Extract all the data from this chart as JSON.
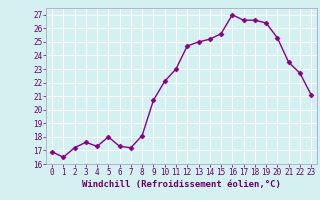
{
  "x": [
    0,
    1,
    2,
    3,
    4,
    5,
    6,
    7,
    8,
    9,
    10,
    11,
    12,
    13,
    14,
    15,
    16,
    17,
    18,
    19,
    20,
    21,
    22,
    23
  ],
  "y": [
    16.9,
    16.5,
    17.2,
    17.6,
    17.3,
    18.0,
    17.3,
    17.2,
    18.1,
    20.7,
    22.1,
    23.0,
    24.7,
    25.0,
    25.2,
    25.6,
    27.0,
    26.6,
    26.6,
    26.4,
    25.3,
    23.5,
    22.7,
    21.1
  ],
  "line_color": "#880088",
  "marker": "D",
  "markersize": 2.5,
  "linewidth": 1.0,
  "bg_color": "#d5f0f0",
  "grid_color": "#b8d8d8",
  "xlim": [
    -0.5,
    23.5
  ],
  "ylim": [
    16,
    27.5
  ],
  "yticks": [
    16,
    17,
    18,
    19,
    20,
    21,
    22,
    23,
    24,
    25,
    26,
    27
  ],
  "xticks": [
    0,
    1,
    2,
    3,
    4,
    5,
    6,
    7,
    8,
    9,
    10,
    11,
    12,
    13,
    14,
    15,
    16,
    17,
    18,
    19,
    20,
    21,
    22,
    23
  ],
  "xlabel": "Windchill (Refroidissement éolien,°C)",
  "tick_color": "#660066",
  "tick_labelsize": 5.5,
  "xlabel_fontsize": 6.5
}
